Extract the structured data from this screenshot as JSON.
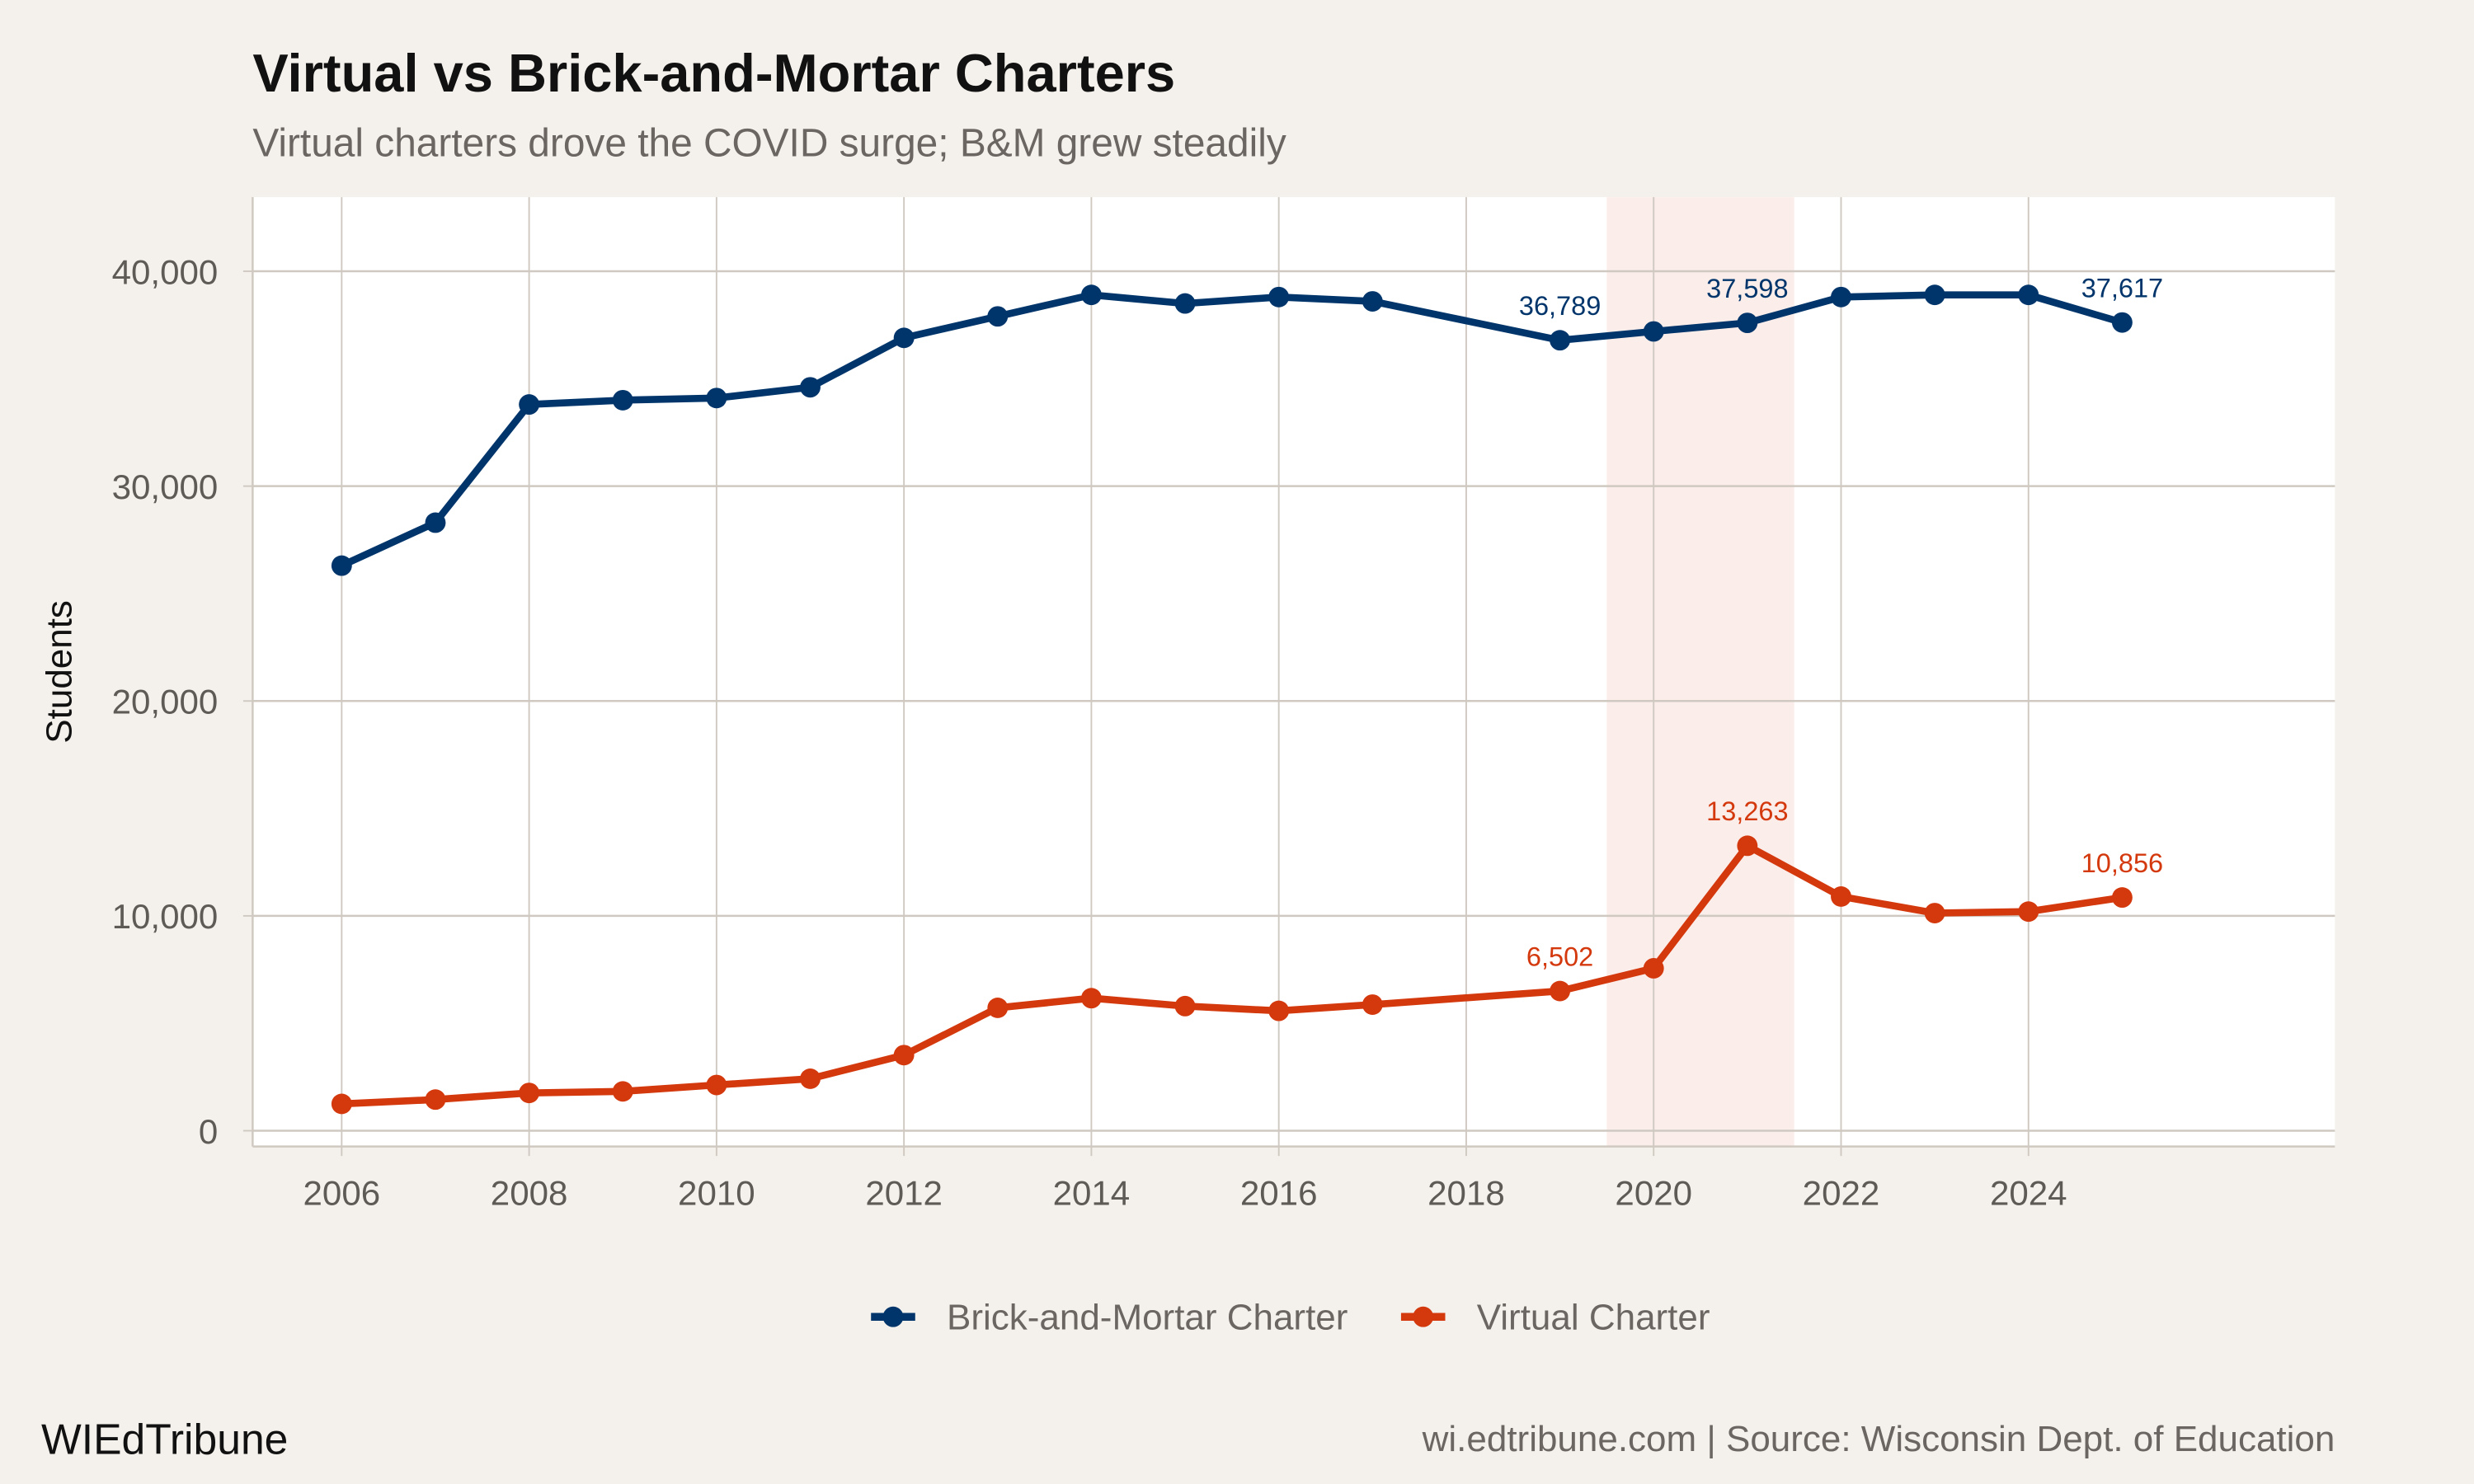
{
  "chart_data": {
    "type": "line",
    "title": "Virtual vs Brick-and-Mortar Charters",
    "subtitle": "Virtual charters drove the COVID surge; B&M grew steadily",
    "xlabel": "",
    "ylabel": "Students",
    "xlim": [
      2005.05,
      2027.27
    ],
    "ylim": [
      -734,
      43450
    ],
    "x_ticks": [
      2006,
      2008,
      2010,
      2012,
      2014,
      2016,
      2018,
      2020,
      2022,
      2024
    ],
    "y_ticks": [
      0,
      10000,
      20000,
      30000,
      40000
    ],
    "y_tick_labels": [
      "0",
      "10,000",
      "20,000",
      "30,000",
      "40,000"
    ],
    "grid": true,
    "legend_position": "bottom",
    "highlight_band": {
      "x_start": 2019.5,
      "x_end": 2021.5,
      "color": "#FBEDEA"
    },
    "x": [
      2006,
      2007,
      2008,
      2009,
      2010,
      2011,
      2012,
      2013,
      2014,
      2015,
      2016,
      2017,
      2019,
      2020,
      2021,
      2022,
      2023,
      2024,
      2025
    ],
    "series": [
      {
        "name": "Brick-and-Mortar Charter",
        "color": "#00356B",
        "values": [
          26300,
          28300,
          33800,
          34000,
          34100,
          34600,
          36900,
          37900,
          38900,
          38500,
          38800,
          38600,
          36789,
          37200,
          37598,
          38800,
          38900,
          38900,
          37617
        ],
        "labels": [
          {
            "x": 2019,
            "text": "36,789"
          },
          {
            "x": 2021,
            "text": "37,598"
          },
          {
            "x": 2025,
            "text": "37,617"
          }
        ]
      },
      {
        "name": "Virtual Charter",
        "color": "#D4380D",
        "values": [
          1250,
          1450,
          1760,
          1830,
          2130,
          2420,
          3520,
          5720,
          6170,
          5800,
          5580,
          5870,
          6502,
          7560,
          13263,
          10900,
          10130,
          10200,
          10856
        ],
        "labels": [
          {
            "x": 2019,
            "text": "6,502"
          },
          {
            "x": 2021,
            "text": "13,263"
          },
          {
            "x": 2025,
            "text": "10,856"
          }
        ]
      }
    ]
  },
  "footer": {
    "brand": "WIEdTribune",
    "source": "wi.edtribune.com | Source: Wisconsin Dept. of Education"
  }
}
